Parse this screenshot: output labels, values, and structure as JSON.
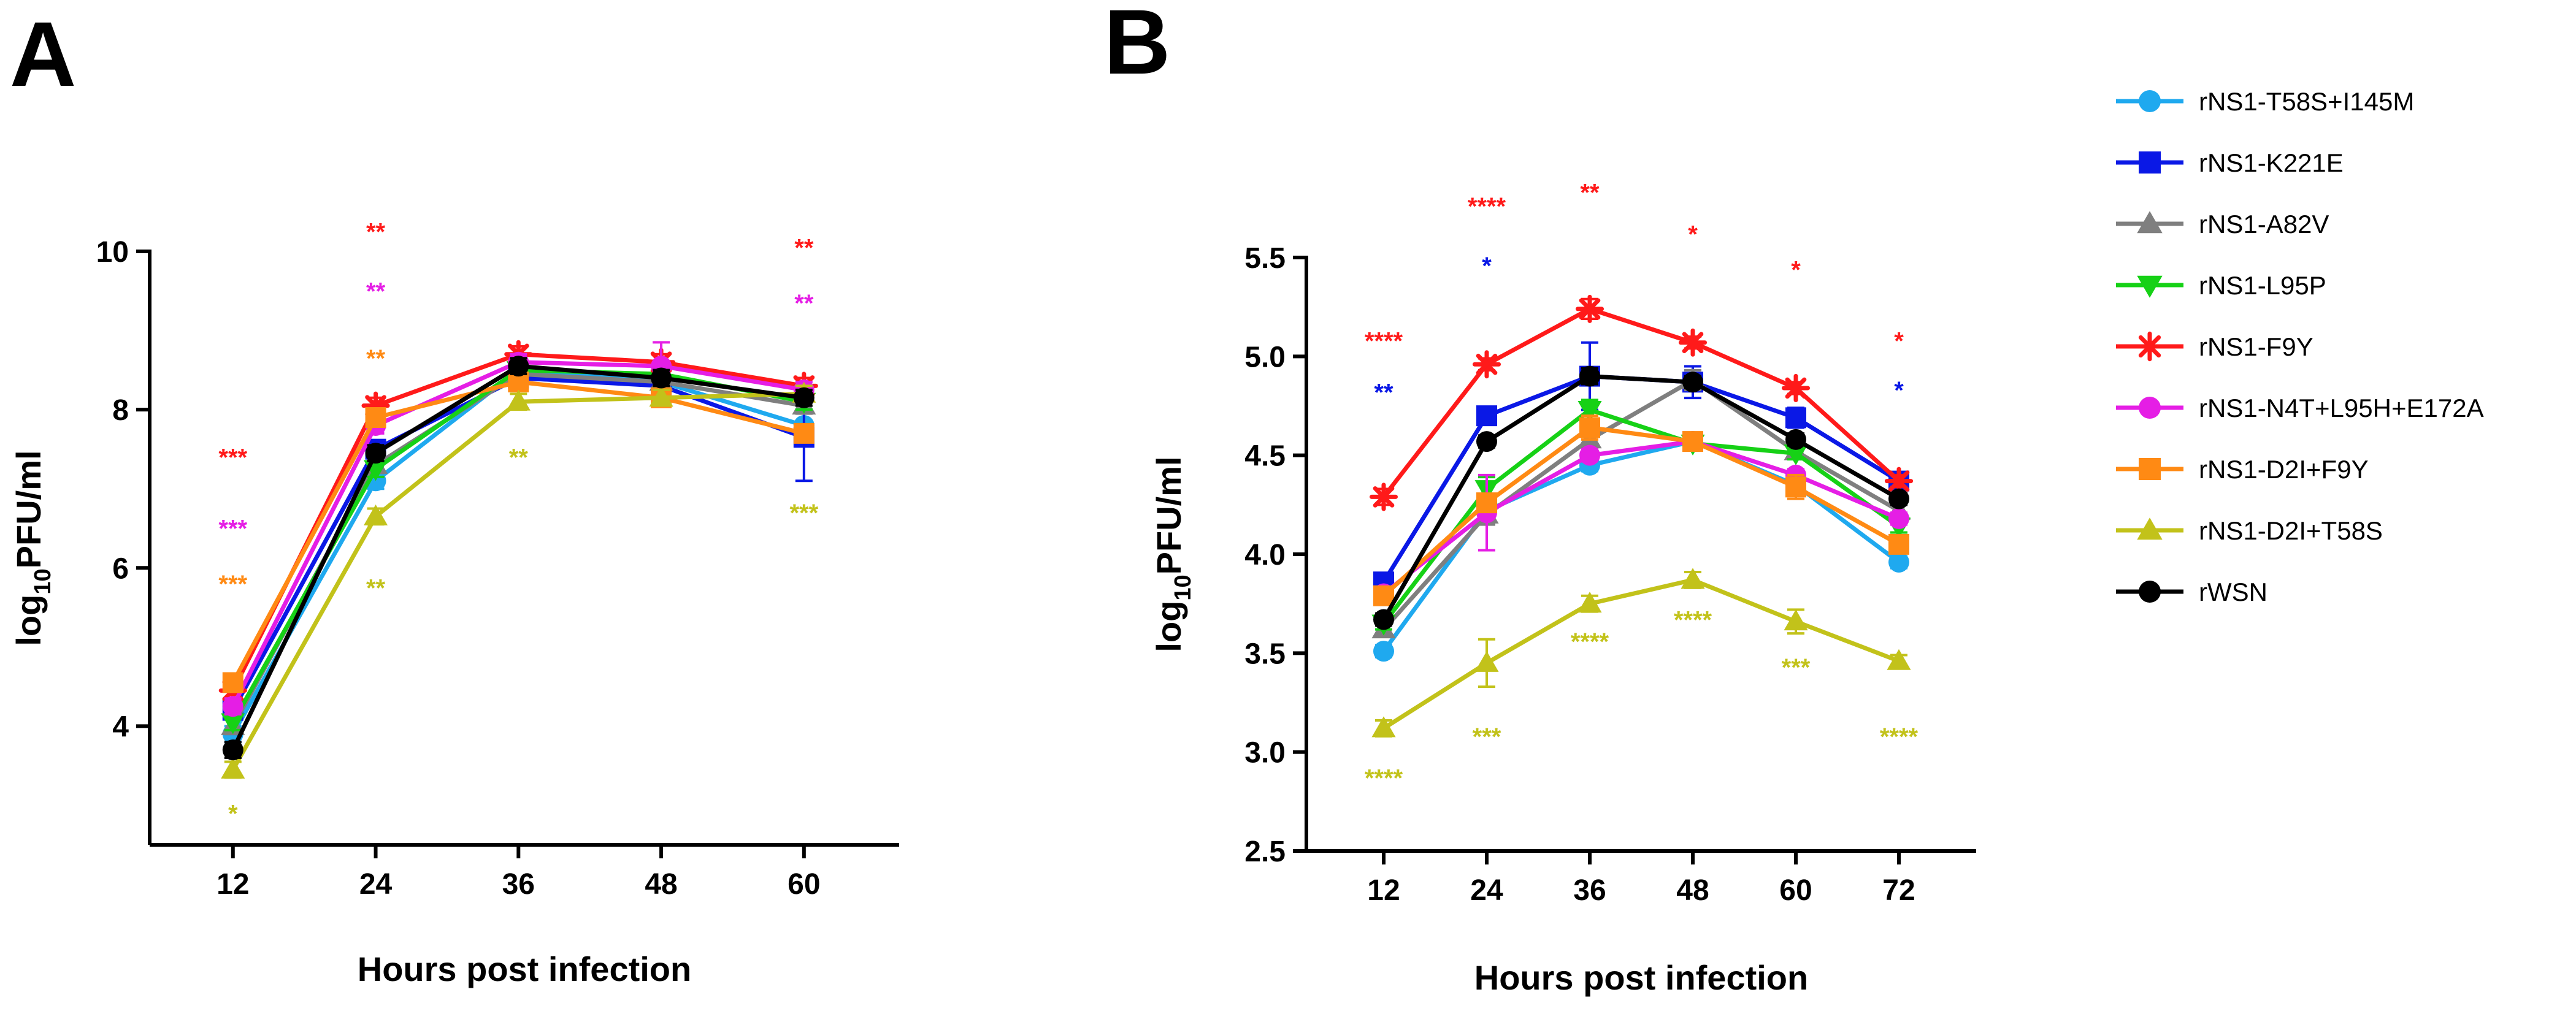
{
  "panels": [
    {
      "letter": "A"
    },
    {
      "letter": "B"
    }
  ],
  "series_styles": [
    {
      "color": "#1fa9ef",
      "marker": "circle-icon"
    },
    {
      "color": "#0a18e6",
      "marker": "square-icon"
    },
    {
      "color": "#7f7f7f",
      "marker": "triangle-up-icon"
    },
    {
      "color": "#16d116",
      "marker": "triangle-down-icon"
    },
    {
      "color": "#ff1a1a",
      "marker": "asterisk-icon"
    },
    {
      "color": "#e51ee5",
      "marker": "circle-icon"
    },
    {
      "color": "#ff8a14",
      "marker": "square-icon"
    },
    {
      "color": "#c2c21a",
      "marker": "triangle-up-icon"
    },
    {
      "color": "#000000",
      "marker": "circle-icon"
    }
  ],
  "legend": {
    "placement": "right",
    "entries": [
      "rNS1-T58S+I145M",
      "rNS1-K221E",
      "rNS1-A82V",
      "rNS1-L95P",
      "rNS1-F9Y",
      "rNS1-N4T+L95H+E172A",
      "rNS1-D2I+F9Y",
      "rNS1-D2I+T58S",
      "rWSN"
    ]
  },
  "chart_data": [
    {
      "panel": "A",
      "type": "line",
      "xlabel": "Hours post infection",
      "ylabel_parts": [
        "log",
        "10",
        "PFU/ml"
      ],
      "x": [
        12,
        24,
        36,
        48,
        60
      ],
      "xlim": [
        5,
        68
      ],
      "ylim": [
        2.5,
        10
      ],
      "yticks": [
        4,
        6,
        8,
        10
      ],
      "grid": false,
      "series": [
        {
          "name": "rNS1-T58S+I145M",
          "values": [
            3.9,
            7.1,
            8.5,
            8.35,
            7.8
          ],
          "err": [
            0.1,
            0.1,
            0.1,
            0.1,
            0.2
          ]
        },
        {
          "name": "rNS1-K221E",
          "values": [
            4.2,
            7.5,
            8.4,
            8.3,
            7.65
          ],
          "err": [
            0.1,
            0.1,
            0.1,
            0.1,
            0.55
          ]
        },
        {
          "name": "rNS1-A82V",
          "values": [
            4.0,
            7.3,
            8.45,
            8.35,
            8.05
          ],
          "err": [
            0.1,
            0.1,
            0.1,
            0.1,
            0.1
          ]
        },
        {
          "name": "rNS1-L95P",
          "values": [
            4.05,
            7.25,
            8.5,
            8.45,
            8.1
          ],
          "err": [
            0.1,
            0.1,
            0.1,
            0.1,
            0.1
          ]
        },
        {
          "name": "rNS1-F9Y",
          "values": [
            4.45,
            8.05,
            8.7,
            8.6,
            8.3
          ],
          "err": [
            0.1,
            0.1,
            0.1,
            0.1,
            0.1
          ]
        },
        {
          "name": "rNS1-N4T+L95H+E172A",
          "values": [
            4.25,
            7.8,
            8.6,
            8.55,
            8.25
          ],
          "err": [
            0.1,
            0.1,
            0.1,
            0.3,
            0.1
          ]
        },
        {
          "name": "rNS1-D2I+F9Y",
          "values": [
            4.55,
            7.9,
            8.35,
            8.15,
            7.7
          ],
          "err": [
            0.1,
            0.1,
            0.1,
            0.1,
            0.1
          ]
        },
        {
          "name": "rNS1-D2I+T58S",
          "values": [
            3.45,
            6.65,
            8.1,
            8.15,
            8.2
          ],
          "err": [
            0.1,
            0.1,
            0.1,
            0.1,
            0.1
          ]
        },
        {
          "name": "rWSN",
          "values": [
            3.7,
            7.45,
            8.55,
            8.4,
            8.15
          ],
          "err": [
            0.1,
            0.1,
            0.1,
            0.1,
            0.1
          ]
        }
      ],
      "annotations": [
        {
          "x": 12,
          "y": 7.4,
          "text": "***",
          "series": 4
        },
        {
          "x": 12,
          "y": 6.5,
          "text": "***",
          "series": 5
        },
        {
          "x": 12,
          "y": 5.8,
          "text": "***",
          "series": 6
        },
        {
          "x": 12,
          "y": 2.9,
          "text": "*",
          "series": 7
        },
        {
          "x": 24,
          "y": 10.25,
          "text": "**",
          "series": 4
        },
        {
          "x": 24,
          "y": 9.5,
          "text": "**",
          "series": 5
        },
        {
          "x": 24,
          "y": 8.65,
          "text": "**",
          "series": 6
        },
        {
          "x": 24,
          "y": 5.75,
          "text": "**",
          "series": 7
        },
        {
          "x": 36,
          "y": 7.4,
          "text": "**",
          "series": 7
        },
        {
          "x": 60,
          "y": 10.05,
          "text": "**",
          "series": 4
        },
        {
          "x": 60,
          "y": 9.35,
          "text": "**",
          "series": 5
        },
        {
          "x": 60,
          "y": 6.7,
          "text": "***",
          "series": 7
        }
      ]
    },
    {
      "panel": "B",
      "type": "line",
      "xlabel": "Hours post infection",
      "ylabel_parts": [
        "log",
        "10",
        "PFU/ml"
      ],
      "x": [
        12,
        24,
        36,
        48,
        60,
        72
      ],
      "xlim": [
        3,
        81
      ],
      "ylim": [
        2.5,
        5.5
      ],
      "yticks": [
        2.5,
        3.0,
        3.5,
        4.0,
        4.5,
        5.0,
        5.5
      ],
      "ytick_labels": [
        "2.5",
        "3.0",
        "3.5",
        "4.0",
        "4.5",
        "5.0",
        "5.5"
      ],
      "grid": false,
      "series": [
        {
          "name": "rNS1-T58S+I145M",
          "values": [
            3.51,
            4.22,
            4.45,
            4.57,
            4.35,
            3.96
          ],
          "err": [
            0.03,
            0.03,
            0.03,
            0.03,
            0.03,
            0.03
          ]
        },
        {
          "name": "rNS1-K221E",
          "values": [
            3.86,
            4.7,
            4.9,
            4.87,
            4.69,
            4.37
          ],
          "err": [
            0.03,
            0.03,
            0.17,
            0.08,
            0.05,
            0.03
          ]
        },
        {
          "name": "rNS1-A82V",
          "values": [
            3.62,
            4.2,
            4.58,
            4.88,
            4.52,
            4.22
          ],
          "err": [
            0.03,
            0.05,
            0.05,
            0.05,
            0.03,
            0.03
          ]
        },
        {
          "name": "rNS1-L95P",
          "values": [
            3.65,
            4.33,
            4.73,
            4.56,
            4.51,
            4.14
          ],
          "err": [
            0.03,
            0.06,
            0.05,
            0.03,
            0.03,
            0.03
          ]
        },
        {
          "name": "rNS1-F9Y",
          "values": [
            4.29,
            4.96,
            5.24,
            5.07,
            4.84,
            4.37
          ],
          "err": [
            0.04,
            0.03,
            0.05,
            0.03,
            0.03,
            0.03
          ]
        },
        {
          "name": "rNS1-N4T+L95H+E172A",
          "values": [
            3.8,
            4.21,
            4.5,
            4.57,
            4.4,
            4.18
          ],
          "err": [
            0.03,
            0.19,
            0.03,
            0.03,
            0.03,
            0.03
          ]
        },
        {
          "name": "rNS1-D2I+F9Y",
          "values": [
            3.79,
            4.26,
            4.64,
            4.57,
            4.34,
            4.05
          ],
          "err": [
            0.03,
            0.03,
            0.06,
            0.03,
            0.06,
            0.03
          ]
        },
        {
          "name": "rNS1-D2I+T58S",
          "values": [
            3.12,
            3.45,
            3.75,
            3.87,
            3.66,
            3.46
          ],
          "err": [
            0.04,
            0.12,
            0.04,
            0.04,
            0.06,
            0.03
          ]
        },
        {
          "name": "rWSN",
          "values": [
            3.67,
            4.57,
            4.9,
            4.87,
            4.58,
            4.28
          ],
          "err": [
            0.03,
            0.03,
            0.04,
            0.03,
            0.03,
            0.03
          ]
        }
      ],
      "annotations": [
        {
          "x": 12,
          "y": 5.08,
          "text": "****",
          "series": 4
        },
        {
          "x": 12,
          "y": 4.82,
          "text": "**",
          "series": 1
        },
        {
          "x": 12,
          "y": 2.87,
          "text": "****",
          "series": 7
        },
        {
          "x": 24,
          "y": 5.76,
          "text": "****",
          "series": 4
        },
        {
          "x": 24,
          "y": 5.46,
          "text": "*",
          "series": 1
        },
        {
          "x": 24,
          "y": 3.08,
          "text": "***",
          "series": 7
        },
        {
          "x": 36,
          "y": 5.83,
          "text": "**",
          "series": 4
        },
        {
          "x": 36,
          "y": 3.56,
          "text": "****",
          "series": 7
        },
        {
          "x": 48,
          "y": 5.62,
          "text": "*",
          "series": 4
        },
        {
          "x": 48,
          "y": 3.67,
          "text": "****",
          "series": 7
        },
        {
          "x": 60,
          "y": 5.44,
          "text": "*",
          "series": 4
        },
        {
          "x": 60,
          "y": 3.43,
          "text": "***",
          "series": 7
        },
        {
          "x": 72,
          "y": 5.08,
          "text": "*",
          "series": 4
        },
        {
          "x": 72,
          "y": 4.83,
          "text": "*",
          "series": 1
        },
        {
          "x": 72,
          "y": 3.08,
          "text": "****",
          "series": 7
        }
      ]
    }
  ]
}
